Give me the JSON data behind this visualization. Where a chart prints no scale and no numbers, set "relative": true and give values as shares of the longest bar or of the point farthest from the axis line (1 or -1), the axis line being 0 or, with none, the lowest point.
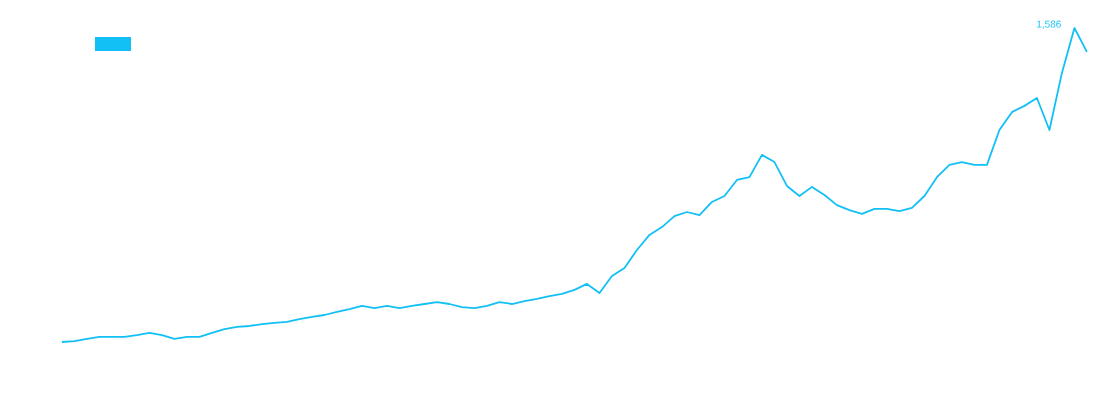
{
  "chart_data": {
    "type": "line",
    "relative": true,
    "annotations": [
      "1,586"
    ],
    "categories": [
      null,
      null,
      null,
      null,
      null,
      null,
      null,
      null,
      null,
      null,
      null,
      null,
      null,
      null,
      null,
      null,
      null,
      null,
      null,
      null,
      null,
      null,
      null,
      null,
      null,
      null,
      null,
      null,
      null,
      null,
      null,
      null,
      null,
      null,
      null,
      null,
      null,
      null,
      null,
      null,
      null,
      null,
      null,
      null,
      null,
      null,
      null,
      null,
      null,
      null,
      null,
      null,
      null,
      null,
      null,
      null,
      null,
      null,
      null,
      null,
      null,
      null,
      null,
      null,
      null,
      null,
      null,
      null,
      null,
      null,
      null,
      null,
      null,
      null,
      null,
      null,
      null,
      null,
      null,
      null,
      null,
      null,
      null
    ],
    "series": [
      {
        "color": "#12c0f5",
        "values": [
          0,
          0.003,
          0.01,
          0.016,
          0.016,
          0.016,
          0.022,
          0.029,
          0.022,
          0.01,
          0.016,
          0.016,
          0.029,
          0.041,
          0.048,
          0.051,
          0.057,
          0.061,
          0.064,
          0.073,
          0.08,
          0.086,
          0.096,
          0.105,
          0.115,
          0.108,
          0.115,
          0.108,
          0.115,
          0.121,
          0.127,
          0.121,
          0.111,
          0.108,
          0.115,
          0.127,
          0.121,
          0.13,
          0.137,
          0.146,
          0.153,
          0.166,
          0.185,
          0.156,
          0.21,
          0.236,
          0.293,
          0.341,
          0.366,
          0.401,
          0.414,
          0.404,
          0.446,
          0.465,
          0.516,
          0.525,
          0.596,
          0.573,
          0.497,
          0.465,
          0.494,
          0.468,
          0.436,
          0.42,
          0.408,
          0.424,
          0.424,
          0.417,
          0.427,
          0.465,
          0.525,
          0.564,
          0.573,
          0.564,
          0.564,
          0.675,
          0.732,
          0.752,
          0.777,
          0.675,
          0.857,
          1,
          0.924
        ]
      }
    ]
  }
}
